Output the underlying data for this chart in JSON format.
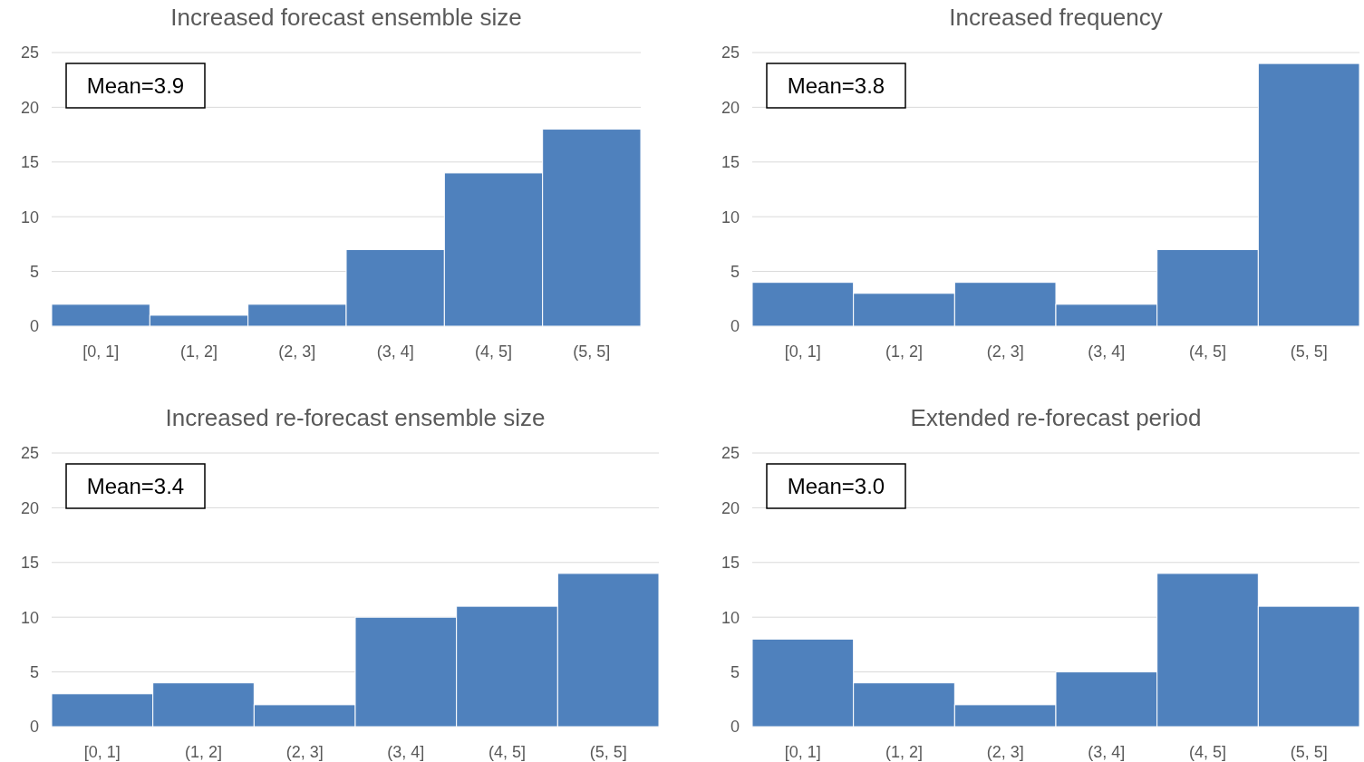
{
  "chart_data": [
    {
      "type": "bar",
      "title": "Increased forecast ensemble size",
      "categories": [
        "[0, 1]",
        "(1, 2]",
        "(2, 3]",
        "(3, 4]",
        "(4, 5]",
        "(5, 5]"
      ],
      "values": [
        2,
        1,
        2,
        7,
        14,
        18
      ],
      "color": "#4f81bd",
      "ylim": [
        0,
        25
      ],
      "yticks": [
        0,
        5,
        10,
        15,
        20,
        25
      ],
      "grid": "y",
      "annotations": [
        "Mean=3.9"
      ]
    },
    {
      "type": "bar",
      "title": "Increased frequency",
      "categories": [
        "[0, 1]",
        "(1, 2]",
        "(2, 3]",
        "(3, 4]",
        "(4, 5]",
        "(5, 5]"
      ],
      "values": [
        4,
        3,
        4,
        2,
        7,
        24
      ],
      "color": "#4f81bd",
      "ylim": [
        0,
        25
      ],
      "yticks": [
        0,
        5,
        10,
        15,
        20,
        25
      ],
      "grid": "y",
      "annotations": [
        "Mean=3.8"
      ]
    },
    {
      "type": "bar",
      "title": "Increased re-forecast ensemble size",
      "categories": [
        "[0, 1]",
        "(1, 2]",
        "(2, 3]",
        "(3, 4]",
        "(4, 5]",
        "(5, 5]"
      ],
      "values": [
        3,
        4,
        2,
        10,
        11,
        14
      ],
      "color": "#4f81bd",
      "ylim": [
        0,
        25
      ],
      "yticks": [
        0,
        5,
        10,
        15,
        20,
        25
      ],
      "grid": "y",
      "annotations": [
        "Mean=3.4"
      ]
    },
    {
      "type": "bar",
      "title": "Extended re-forecast period",
      "categories": [
        "[0, 1]",
        "(1, 2]",
        "(2, 3]",
        "(3, 4]",
        "(4, 5]",
        "(5, 5]"
      ],
      "values": [
        8,
        4,
        2,
        5,
        14,
        11
      ],
      "color": "#4f81bd",
      "ylim": [
        0,
        25
      ],
      "yticks": [
        0,
        5,
        10,
        15,
        20,
        25
      ],
      "grid": "y",
      "annotations": [
        "Mean=3.0"
      ]
    }
  ]
}
